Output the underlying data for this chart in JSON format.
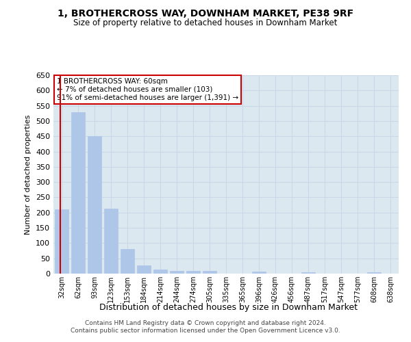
{
  "title": "1, BROTHERCROSS WAY, DOWNHAM MARKET, PE38 9RF",
  "subtitle": "Size of property relative to detached houses in Downham Market",
  "xlabel": "Distribution of detached houses by size in Downham Market",
  "ylabel": "Number of detached properties",
  "categories": [
    "32sqm",
    "62sqm",
    "93sqm",
    "123sqm",
    "153sqm",
    "184sqm",
    "214sqm",
    "244sqm",
    "274sqm",
    "305sqm",
    "335sqm",
    "365sqm",
    "396sqm",
    "426sqm",
    "456sqm",
    "487sqm",
    "517sqm",
    "547sqm",
    "577sqm",
    "608sqm",
    "638sqm"
  ],
  "values": [
    210,
    530,
    450,
    213,
    80,
    27,
    13,
    10,
    9,
    9,
    0,
    0,
    7,
    0,
    0,
    5,
    0,
    0,
    0,
    5,
    0
  ],
  "bar_color": "#aec6e8",
  "bar_edgecolor": "#aec6e8",
  "grid_color": "#c8d8e8",
  "background_color": "#dce8f0",
  "annotation_text": "1 BROTHERCROSS WAY: 60sqm\n← 7% of detached houses are smaller (103)\n91% of semi-detached houses are larger (1,391) →",
  "annotation_box_color": "#ffffff",
  "annotation_border_color": "#cc0000",
  "vline_x": -0.08,
  "vline_color": "#cc0000",
  "ylim": [
    0,
    650
  ],
  "yticks": [
    0,
    50,
    100,
    150,
    200,
    250,
    300,
    350,
    400,
    450,
    500,
    550,
    600,
    650
  ],
  "footer_line1": "Contains HM Land Registry data © Crown copyright and database right 2024.",
  "footer_line2": "Contains public sector information licensed under the Open Government Licence v3.0."
}
